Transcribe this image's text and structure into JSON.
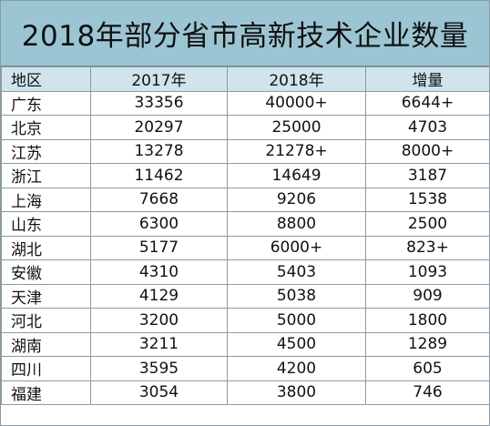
{
  "chart_data": {
    "type": "table",
    "title": "2018年部分省市高新技术企业数量",
    "columns": [
      "地区",
      "2017年",
      "2018年",
      "增量"
    ],
    "rows": [
      [
        "广东",
        "33356",
        "40000+",
        "6644+"
      ],
      [
        "北京",
        "20297",
        "25000",
        "4703"
      ],
      [
        "江苏",
        "13278",
        "21278+",
        "8000+"
      ],
      [
        "浙江",
        "11462",
        "14649",
        "3187"
      ],
      [
        "上海",
        "7668",
        "9206",
        "1538"
      ],
      [
        "山东",
        "6300",
        "8800",
        "2500"
      ],
      [
        "湖北",
        "5177",
        "6000+",
        "823+"
      ],
      [
        "安徽",
        "4310",
        "5403",
        "1093"
      ],
      [
        "天津",
        "4129",
        "5038",
        "909"
      ],
      [
        "河北",
        "3200",
        "5000",
        "1800"
      ],
      [
        "湖南",
        "3211",
        "4500",
        "1289"
      ],
      [
        "四川",
        "3595",
        "4200",
        "605"
      ],
      [
        "福建",
        "3054",
        "3800",
        "746"
      ]
    ]
  },
  "colors": {
    "title_bg": "#9cc5d3",
    "header_bg": "#cfe4ec",
    "border": "#8f9aa2"
  }
}
